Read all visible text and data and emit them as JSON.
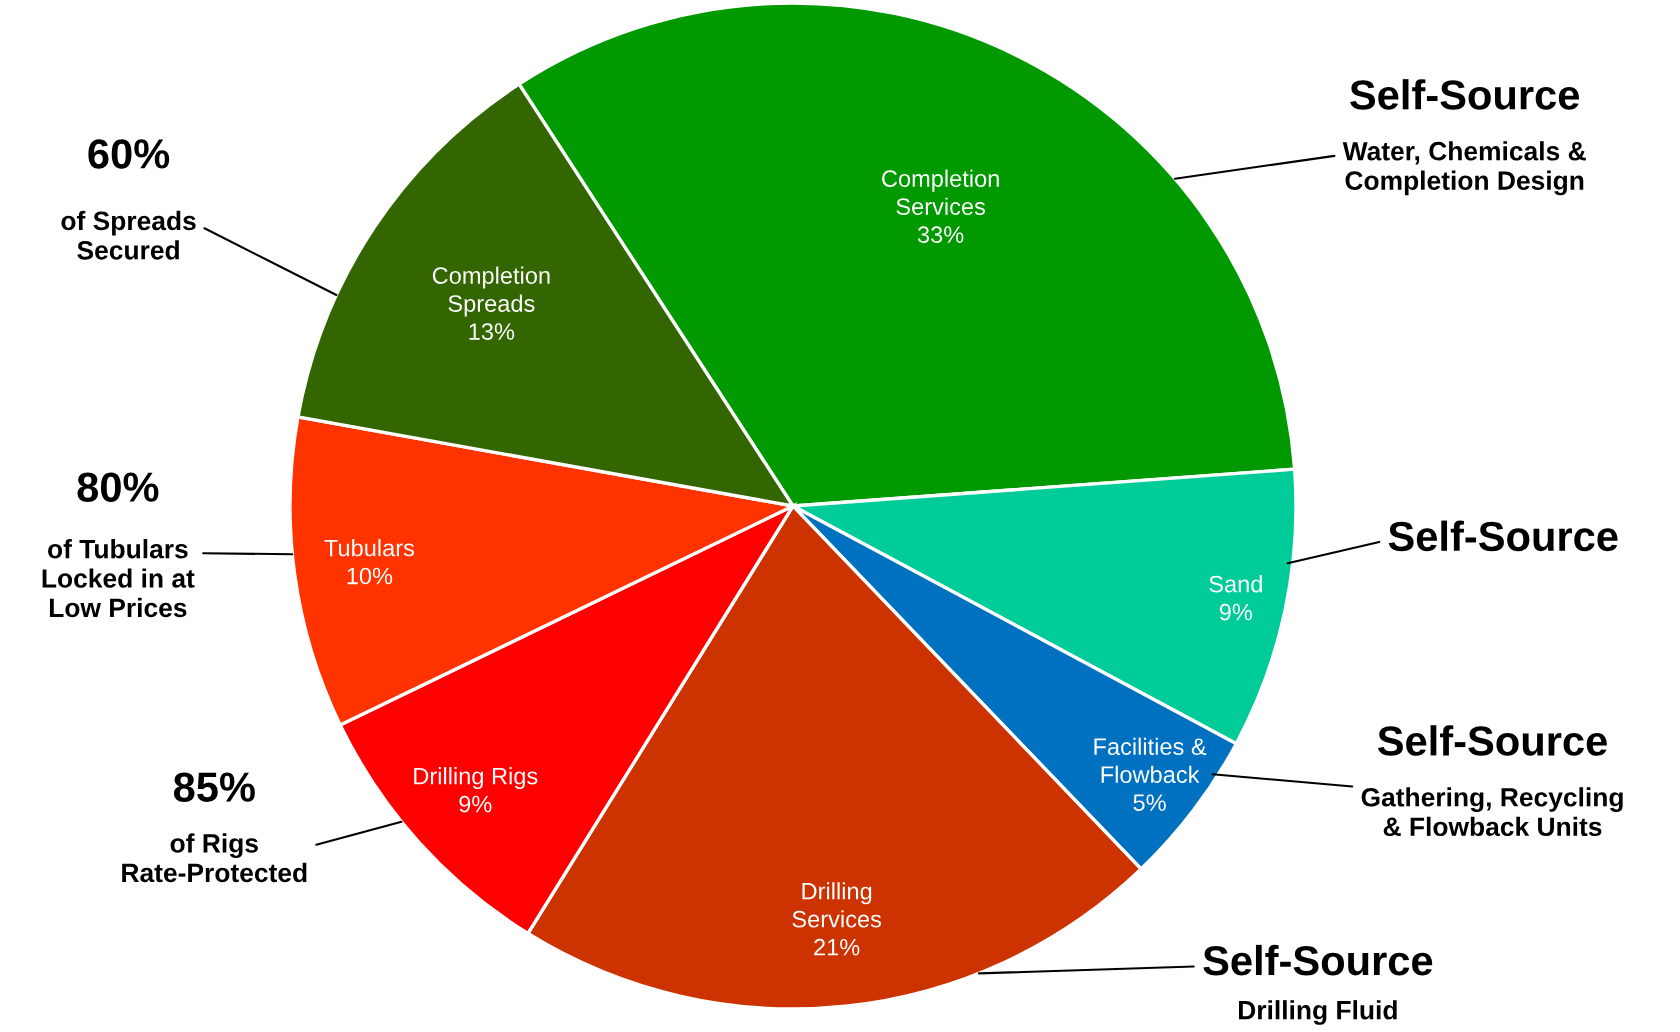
{
  "chart_data": {
    "type": "pie",
    "categories": [
      "Completion\nServices",
      "Sand",
      "Facilities &\nFlowback",
      "Drilling\nServices",
      "Drilling Rigs",
      "Tubulars",
      "Completion\nSpreads"
    ],
    "values": [
      33,
      9,
      5,
      21,
      9,
      10,
      13
    ],
    "colors": [
      "#009900",
      "#00cc99",
      "#0070c0",
      "#cc3300",
      "#ff0000",
      "#ff3300",
      "#336600"
    ],
    "value_labels": [
      "33%",
      "9%",
      "5%",
      "21%",
      "9%",
      "10%",
      "13%"
    ],
    "annotations": [
      "Self-Source",
      "Water, Chemicals &\nCompletion Design",
      "Self-Source",
      "Self-Source",
      "Gathering, Recycling\n& Flowback Units",
      "Self-Source",
      "Drilling Fluid",
      "60%",
      "of Spreads\nSecured",
      "80%",
      "of Tubulars\nLocked in at\nLow Prices",
      "85%",
      "of Rigs\nRate-Protected"
    ]
  }
}
